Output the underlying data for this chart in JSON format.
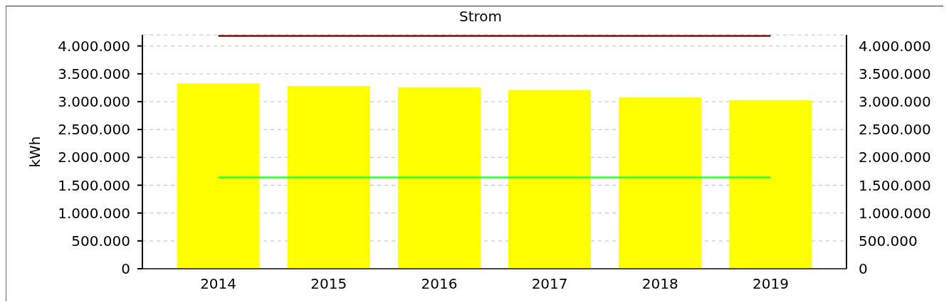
{
  "chart_data": {
    "type": "bar",
    "title": "Strom",
    "ylabel": "kWh",
    "categories": [
      "2014",
      "2015",
      "2016",
      "2017",
      "2018",
      "2019"
    ],
    "series": [
      {
        "color": "#ffff00",
        "values": [
          3330000,
          3280000,
          3260000,
          3210000,
          3080000,
          3030000
        ]
      },
      {
        "type": "line",
        "color": "#33ff33",
        "values": [
          1640000,
          1640000,
          1640000,
          1640000,
          1640000,
          1640000
        ]
      },
      {
        "type": "line",
        "color": "#990000",
        "values": [
          4180000,
          4180000,
          4180000,
          4180000,
          4180000,
          4180000
        ]
      }
    ],
    "ylim": [
      0,
      4200000
    ],
    "yticks": [
      0,
      {
        "value": 500000,
        "label": "500.000"
      },
      {
        "value": 1000000,
        "label": "1.000.000"
      },
      {
        "value": 1500000,
        "label": "1.500.000"
      },
      {
        "value": 2000000,
        "label": "2.000.000"
      },
      {
        "value": 2500000,
        "label": "2.500.000"
      },
      {
        "value": 3000000,
        "label": "3.000.000"
      },
      {
        "value": 3500000,
        "label": "3.500.000"
      },
      {
        "value": 4000000,
        "label": "4.000.000"
      }
    ],
    "y2lim": [
      0,
      4200000
    ],
    "y2ticks": [
      0,
      {
        "value": 500000,
        "label": "500.000"
      },
      {
        "value": 1000000,
        "label": "1.000.000"
      },
      {
        "value": 1500000,
        "label": "1.500.000"
      },
      {
        "value": 2000000,
        "label": "2.000.000"
      },
      {
        "value": 2500000,
        "label": "2.500.000"
      },
      {
        "value": 3000000,
        "label": "3.000.000"
      },
      {
        "value": 3500000,
        "label": "3.500.000"
      },
      {
        "value": 4000000,
        "label": "4.000.000"
      }
    ],
    "grid": "y",
    "legend": false,
    "marker": "none",
    "line_style": "solid"
  }
}
